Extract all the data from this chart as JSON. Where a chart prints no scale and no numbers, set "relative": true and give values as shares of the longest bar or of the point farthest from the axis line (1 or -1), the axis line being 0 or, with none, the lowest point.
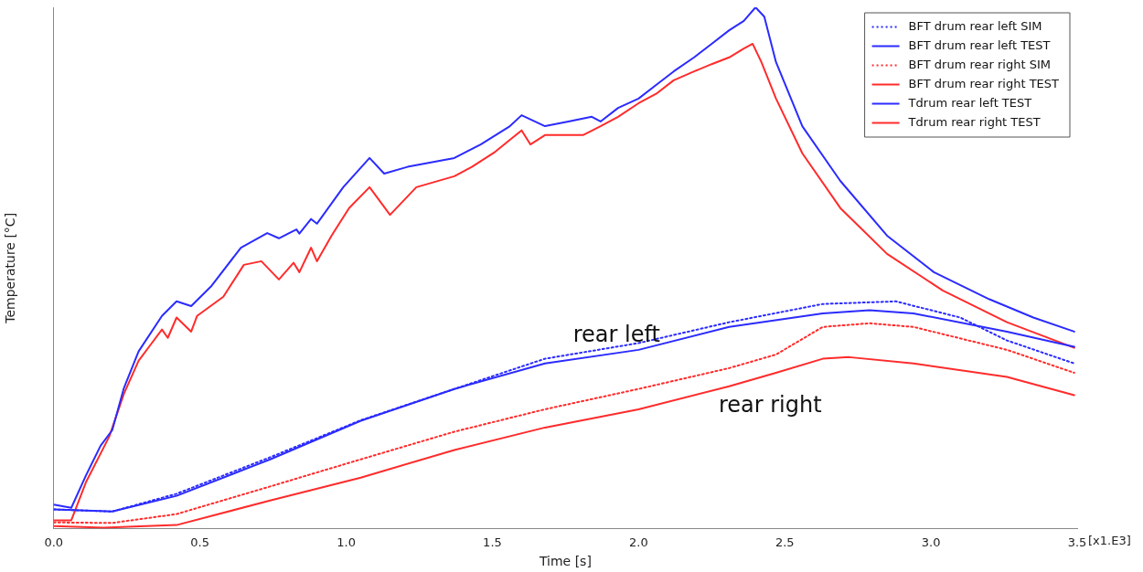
{
  "chart_data": {
    "type": "line",
    "relative": true,
    "xlabel": "Time [s]",
    "ylabel": "Temperature [°C]",
    "xlim": [
      0,
      3.5
    ],
    "xticks": [
      {
        "value": 0,
        "label": "0.0"
      },
      {
        "value": 0.5,
        "label": "0.5"
      },
      {
        "value": 1,
        "label": "1.0"
      },
      {
        "value": 1.5,
        "label": "1.5"
      },
      {
        "value": 2,
        "label": "2.0"
      },
      {
        "value": 2.5,
        "label": "2.5"
      },
      {
        "value": 3,
        "label": "3.0"
      },
      {
        "value": 3.5,
        "label": "3.5"
      }
    ],
    "grid": false,
    "legend": "top right",
    "marker": "none",
    "annotations": [
      "[x1.E3]",
      "rear left",
      "rear right"
    ],
    "series": [
      {
        "name": "BFT drum rear left SIM",
        "color": "#2b2bff",
        "line_style": "dotted",
        "x": [
          0,
          0.2,
          0.42,
          0.74,
          1.05,
          1.37,
          1.68,
          2.0,
          2.31,
          2.63,
          2.88,
          3.1,
          3.26,
          3.49
        ],
        "values": [
          0.037,
          0.033,
          0.067,
          0.137,
          0.208,
          0.268,
          0.326,
          0.356,
          0.396,
          0.431,
          0.436,
          0.405,
          0.361,
          0.317
        ]
      },
      {
        "name": "BFT drum rear left TEST",
        "color": "#2b2bff",
        "line_style": "solid",
        "x": [
          0,
          0.2,
          0.42,
          0.74,
          1.05,
          1.37,
          1.68,
          2.0,
          2.31,
          2.63,
          2.79,
          2.94,
          3.26,
          3.49
        ],
        "values": [
          0.037,
          0.033,
          0.063,
          0.133,
          0.207,
          0.268,
          0.317,
          0.343,
          0.387,
          0.413,
          0.419,
          0.413,
          0.378,
          0.349
        ]
      },
      {
        "name": "BFT drum rear right SIM",
        "color": "#ff2b2b",
        "line_style": "dotted",
        "x": [
          0,
          0.2,
          0.42,
          0.74,
          1.05,
          1.37,
          1.68,
          2.0,
          2.31,
          2.47,
          2.63,
          2.79,
          2.94,
          3.26,
          3.49
        ],
        "values": [
          0.012,
          0.011,
          0.028,
          0.081,
          0.133,
          0.186,
          0.229,
          0.268,
          0.308,
          0.334,
          0.387,
          0.394,
          0.387,
          0.343,
          0.299
        ]
      },
      {
        "name": "BFT drum rear right TEST",
        "color": "#ff2b2b",
        "line_style": "solid",
        "x": [
          0,
          0.17,
          0.42,
          0.74,
          1.05,
          1.37,
          1.68,
          2.0,
          2.31,
          2.47,
          2.63,
          2.72,
          2.94,
          3.26,
          3.49
        ],
        "values": [
          0.005,
          0.002,
          0.007,
          0.054,
          0.098,
          0.151,
          0.194,
          0.229,
          0.273,
          0.299,
          0.326,
          0.329,
          0.317,
          0.291,
          0.256
        ]
      },
      {
        "name": "Tdrum rear left TEST",
        "color": "#2b2bff",
        "line_style": "solid",
        "x": [
          0,
          0.06,
          0.11,
          0.16,
          0.2,
          0.24,
          0.29,
          0.37,
          0.42,
          0.47,
          0.54,
          0.64,
          0.73,
          0.77,
          0.83,
          0.84,
          0.88,
          0.9,
          0.99,
          1.08,
          1.13,
          1.21,
          1.37,
          1.46,
          1.56,
          1.6,
          1.68,
          1.76,
          1.84,
          1.87,
          1.93,
          2.0,
          2.06,
          2.12,
          2.19,
          2.25,
          2.31,
          2.36,
          2.4,
          2.43,
          2.47,
          2.56,
          2.69,
          2.85,
          3.01,
          3.2,
          3.35,
          3.49
        ],
        "values": [
          0.046,
          0.04,
          0.102,
          0.159,
          0.189,
          0.27,
          0.34,
          0.408,
          0.436,
          0.427,
          0.466,
          0.539,
          0.567,
          0.557,
          0.574,
          0.566,
          0.594,
          0.585,
          0.655,
          0.711,
          0.681,
          0.694,
          0.711,
          0.737,
          0.772,
          0.793,
          0.772,
          0.781,
          0.79,
          0.781,
          0.807,
          0.825,
          0.851,
          0.877,
          0.904,
          0.93,
          0.956,
          0.974,
          1,
          0.982,
          0.895,
          0.772,
          0.667,
          0.562,
          0.492,
          0.44,
          0.405,
          0.378
        ]
      },
      {
        "name": "Tdrum rear right TEST",
        "color": "#ff2b2b",
        "line_style": "solid",
        "x": [
          0,
          0.06,
          0.11,
          0.19,
          0.24,
          0.29,
          0.33,
          0.37,
          0.39,
          0.42,
          0.47,
          0.49,
          0.58,
          0.65,
          0.71,
          0.77,
          0.82,
          0.84,
          0.88,
          0.9,
          0.95,
          1.01,
          1.08,
          1.15,
          1.24,
          1.37,
          1.43,
          1.51,
          1.56,
          1.6,
          1.63,
          1.68,
          1.81,
          1.87,
          1.93,
          2.0,
          2.06,
          2.12,
          2.19,
          2.25,
          2.31,
          2.36,
          2.39,
          2.42,
          2.47,
          2.56,
          2.69,
          2.85,
          3.04,
          3.26,
          3.49
        ],
        "values": [
          0.016,
          0.016,
          0.089,
          0.177,
          0.259,
          0.322,
          0.352,
          0.382,
          0.366,
          0.405,
          0.378,
          0.408,
          0.445,
          0.506,
          0.513,
          0.478,
          0.51,
          0.492,
          0.539,
          0.513,
          0.562,
          0.615,
          0.655,
          0.602,
          0.655,
          0.676,
          0.694,
          0.723,
          0.746,
          0.764,
          0.737,
          0.755,
          0.755,
          0.772,
          0.79,
          0.816,
          0.834,
          0.86,
          0.877,
          0.891,
          0.904,
          0.921,
          0.93,
          0.895,
          0.825,
          0.72,
          0.615,
          0.527,
          0.457,
          0.396,
          0.347
        ]
      }
    ]
  }
}
